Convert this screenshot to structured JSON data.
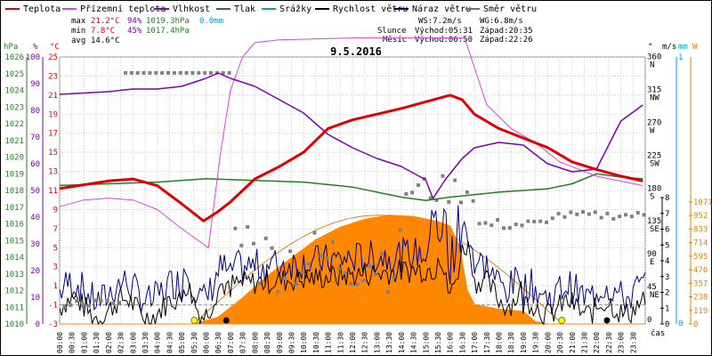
{
  "chart_data": {
    "type": "line",
    "title": "9.5.2016",
    "legend": [
      {
        "label": "Teplota",
        "color": "#e00000"
      },
      {
        "label": "Přízemní teplota",
        "color": "#e040e0"
      },
      {
        "label": "Vlhkost",
        "color": "#8000b0"
      },
      {
        "label": "Tlak",
        "color": "#208020"
      },
      {
        "label": "Srážky",
        "color": "#00a0d0"
      },
      {
        "label": "Rychlost větru",
        "color": "#000000"
      },
      {
        "label": "Náraz větru",
        "color": "#000080"
      },
      {
        "label": "Směr větru",
        "color": "#707070"
      }
    ],
    "stats": {
      "max": {
        "label": "max",
        "temp": "21.2°C",
        "hum": "94%",
        "press": "1019.3hPa",
        "rain": "0.0mm"
      },
      "min": {
        "label": "min",
        "temp": "7.8°C",
        "hum": "45%",
        "press": "1017.4hPa"
      },
      "avg": {
        "label": "avg",
        "temp": "14.6°C"
      }
    },
    "wind": {
      "ws": "WS:7.2m/s",
      "wg": "WG:6.8m/s"
    },
    "sun": {
      "label": "Slunce",
      "rise": "Východ:05:31",
      "set": "Západ:20:35"
    },
    "moon": {
      "label": "Měsíc",
      "rise": "Východ:06:50",
      "set": "Západ:22:26"
    },
    "axes": {
      "hpa": {
        "unit": "hPa",
        "ticks": [
          1010,
          1011,
          1012,
          1013,
          1014,
          1015,
          1016,
          1017,
          1018,
          1019,
          1020,
          1021,
          1022,
          1023,
          1024,
          1025,
          1026
        ]
      },
      "pct": {
        "unit": "%",
        "ticks": [
          0,
          10,
          20,
          30,
          40,
          50,
          60,
          70,
          80,
          90,
          100
        ]
      },
      "temp": {
        "unit": "°C",
        "ticks": [
          -3,
          -1,
          1,
          3,
          5,
          7,
          9,
          11,
          13,
          15,
          17,
          19,
          21,
          23,
          25
        ]
      },
      "dir": {
        "unit": "°",
        "ticks": [
          {
            "v": 360,
            "s": "N"
          },
          {
            "v": 315,
            "s": "NW"
          },
          {
            "v": 270,
            "s": "W"
          },
          {
            "v": 225,
            "s": "SW"
          },
          {
            "v": 180,
            "s": "S"
          },
          {
            "v": 135,
            "s": "SE"
          },
          {
            "v": 90,
            "s": "E"
          },
          {
            "v": 45,
            "s": "NE"
          },
          {
            "v": 0,
            "s": ""
          }
        ]
      },
      "ms": {
        "unit": "m/s",
        "ticks": [
          0,
          1,
          2,
          3,
          4,
          5,
          6,
          7,
          8
        ]
      },
      "mm": {
        "unit": "mm",
        "ticks": [
          0,
          1
        ]
      },
      "wm2": {
        "unit": "W",
        "ticks": [
          0,
          119,
          238,
          357,
          476,
          595,
          714,
          833,
          952,
          1071
        ]
      },
      "time_label": "čas",
      "time_ticks": [
        "00:00",
        "00:30",
        "01:00",
        "01:30",
        "02:00",
        "02:30",
        "03:00",
        "03:30",
        "04:00",
        "04:30",
        "05:00",
        "05:30",
        "06:00",
        "06:30",
        "07:00",
        "07:30",
        "08:00",
        "08:30",
        "09:00",
        "09:30",
        "10:00",
        "10:30",
        "11:00",
        "11:30",
        "12:00",
        "12:30",
        "13:00",
        "13:30",
        "14:00",
        "14:30",
        "15:00",
        "15:30",
        "16:00",
        "16:30",
        "17:00",
        "17:30",
        "18:00",
        "18:30",
        "19:00",
        "19:30",
        "20:00",
        "20:30",
        "21:00",
        "21:30",
        "22:00",
        "22:30",
        "23:00",
        "23:30"
      ]
    },
    "series": {
      "temperature": {
        "name": "Teplota",
        "points": [
          [
            0,
            11.2
          ],
          [
            1,
            11.6
          ],
          [
            2,
            12
          ],
          [
            3,
            12.2
          ],
          [
            4,
            11.5
          ],
          [
            5,
            9.6
          ],
          [
            5.9,
            7.8
          ],
          [
            6.5,
            8.8
          ],
          [
            7,
            9.8
          ],
          [
            8,
            12.2
          ],
          [
            9,
            13.5
          ],
          [
            10,
            15
          ],
          [
            11,
            17.5
          ],
          [
            12,
            18.4
          ],
          [
            13,
            19
          ],
          [
            14,
            19.6
          ],
          [
            15,
            20.3
          ],
          [
            16,
            21
          ],
          [
            16.5,
            20.5
          ],
          [
            17,
            19
          ],
          [
            18,
            17.5
          ],
          [
            19,
            16.5
          ],
          [
            20,
            15.5
          ],
          [
            21,
            14
          ],
          [
            22,
            13.2
          ],
          [
            23,
            12.5
          ],
          [
            23.9,
            12
          ]
        ]
      },
      "ground_temperature": {
        "name": "Přízemní teplota",
        "points": [
          [
            0,
            9.3
          ],
          [
            1,
            10
          ],
          [
            2,
            10.2
          ],
          [
            3,
            10
          ],
          [
            4,
            9
          ],
          [
            5,
            7
          ],
          [
            6.1,
            5
          ],
          [
            6.6,
            15
          ],
          [
            7,
            21.5
          ],
          [
            7.5,
            25
          ],
          [
            8,
            26.5
          ],
          [
            9,
            26.8
          ],
          [
            12,
            27
          ],
          [
            15,
            27
          ],
          [
            16.6,
            27
          ],
          [
            17.5,
            20
          ],
          [
            18.5,
            17.5
          ],
          [
            19.5,
            16
          ],
          [
            20.5,
            14
          ],
          [
            22,
            12.5
          ],
          [
            23.9,
            11.5
          ]
        ]
      },
      "humidity": {
        "name": "Vlhkost",
        "points": [
          [
            0,
            86
          ],
          [
            1,
            86.5
          ],
          [
            2,
            87
          ],
          [
            3,
            88
          ],
          [
            4,
            88
          ],
          [
            5,
            89
          ],
          [
            6,
            92
          ],
          [
            6.5,
            94
          ],
          [
            7,
            92
          ],
          [
            8,
            89
          ],
          [
            9,
            84
          ],
          [
            10,
            79
          ],
          [
            11,
            71
          ],
          [
            12,
            66
          ],
          [
            13,
            62
          ],
          [
            14,
            59
          ],
          [
            15,
            54
          ],
          [
            15.3,
            47
          ],
          [
            15.8,
            54
          ],
          [
            16.5,
            62
          ],
          [
            17,
            66
          ],
          [
            18,
            68
          ],
          [
            19,
            67
          ],
          [
            20,
            60
          ],
          [
            21,
            57
          ],
          [
            22,
            58
          ],
          [
            23,
            76
          ],
          [
            23.9,
            82
          ]
        ]
      },
      "pressure": {
        "name": "Tlak",
        "points": [
          [
            0,
            1018.3
          ],
          [
            2,
            1018.4
          ],
          [
            4,
            1018.5
          ],
          [
            6,
            1018.7
          ],
          [
            8,
            1018.6
          ],
          [
            10,
            1018.5
          ],
          [
            12,
            1018.2
          ],
          [
            14,
            1017.6
          ],
          [
            15,
            1017.4
          ],
          [
            16,
            1017.6
          ],
          [
            18,
            1017.9
          ],
          [
            20,
            1018.1
          ],
          [
            21,
            1018.4
          ],
          [
            22,
            1019.0
          ],
          [
            23,
            1018.8
          ],
          [
            23.9,
            1018.7
          ]
        ]
      },
      "solar_radiation": {
        "name": "",
        "points": [
          [
            0,
            0
          ],
          [
            5.5,
            0
          ],
          [
            6.5,
            60
          ],
          [
            7.5,
            230
          ],
          [
            8.5,
            420
          ],
          [
            9.5,
            580
          ],
          [
            10.5,
            740
          ],
          [
            11.5,
            850
          ],
          [
            12.5,
            920
          ],
          [
            13.5,
            955
          ],
          [
            14.5,
            945
          ],
          [
            15.5,
            900
          ],
          [
            16,
            860
          ],
          [
            16.4,
            680
          ],
          [
            16.7,
            300
          ],
          [
            17,
            170
          ],
          [
            18,
            130
          ],
          [
            19,
            110
          ],
          [
            19.5,
            20
          ],
          [
            20,
            0
          ],
          [
            23.9,
            0
          ]
        ]
      },
      "wind_direction_note": "Směr větru"
    }
  }
}
